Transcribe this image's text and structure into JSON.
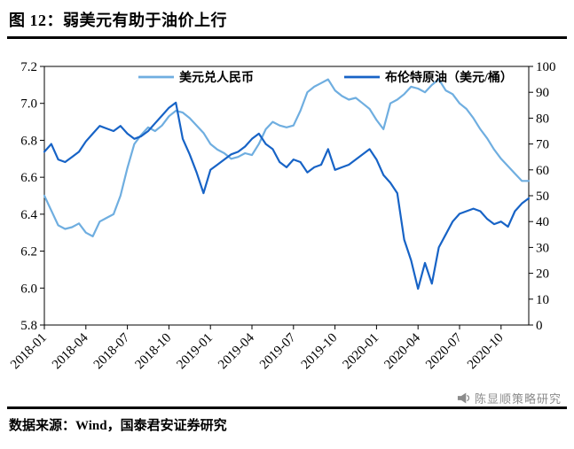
{
  "header": {
    "title": "图 12：弱美元有助于油价上行"
  },
  "footer": {
    "source": "数据来源：Wind，国泰君安证券研究",
    "watermark": "陈显顺策略研究"
  },
  "icons": {
    "watermark": "megaphone-icon"
  },
  "colors": {
    "usdcny_line": "#6FAEE0",
    "brent_line": "#1763C6",
    "divider": "#000000",
    "watermark_text": "#8C8C8C"
  },
  "chart_data": {
    "type": "line",
    "title": "图 12：弱美元有助于油价上行",
    "legend_position": "top",
    "grid": false,
    "x_range": [
      0,
      35
    ],
    "x_ticks": [
      0,
      3,
      6,
      9,
      12,
      15,
      18,
      21,
      24,
      27,
      30,
      33
    ],
    "x_tick_labels": [
      "2018-01",
      "2018-04",
      "2018-07",
      "2018-10",
      "2019-01",
      "2019-04",
      "2019-07",
      "2019-10",
      "2020-01",
      "2020-04",
      "2020-07",
      "2020-10"
    ],
    "left_axis": {
      "label": "美元兑人民币",
      "min": 5.8,
      "max": 7.2,
      "ticks": [
        5.8,
        6.0,
        6.2,
        6.4,
        6.6,
        6.8,
        7.0,
        7.2
      ],
      "tick_labels": [
        "5.8",
        "6.0",
        "6.2",
        "6.4",
        "6.6",
        "6.8",
        "7.0",
        "7.2"
      ]
    },
    "right_axis": {
      "label": "布伦特原油（美元/桶）",
      "min": 0,
      "max": 100,
      "ticks": [
        0,
        10,
        20,
        30,
        40,
        50,
        60,
        70,
        80,
        90,
        100
      ],
      "tick_labels": [
        "0",
        "10",
        "20",
        "30",
        "40",
        "50",
        "60",
        "70",
        "80",
        "90",
        "100"
      ]
    },
    "x": [
      0,
      0.5,
      1,
      1.5,
      2,
      2.5,
      3,
      3.5,
      4,
      4.5,
      5,
      5.5,
      6,
      6.5,
      7,
      7.5,
      8,
      8.5,
      9,
      9.5,
      10,
      10.5,
      11,
      11.5,
      12,
      12.5,
      13,
      13.5,
      14,
      14.5,
      15,
      15.5,
      16,
      16.5,
      17,
      17.5,
      18,
      18.5,
      19,
      19.5,
      20,
      20.5,
      21,
      21.5,
      22,
      22.5,
      23,
      23.5,
      24,
      24.5,
      25,
      25.5,
      26,
      26.5,
      27,
      27.5,
      28,
      28.5,
      29,
      29.5,
      30,
      30.5,
      31,
      31.5,
      32,
      32.5,
      33,
      33.5,
      34,
      34.5,
      35
    ],
    "series": [
      {
        "name": "美元兑人民币",
        "axis": "left",
        "color": "#6FAEE0",
        "values": [
          6.5,
          6.42,
          6.34,
          6.32,
          6.33,
          6.35,
          6.3,
          6.28,
          6.36,
          6.38,
          6.4,
          6.5,
          6.65,
          6.78,
          6.83,
          6.87,
          6.85,
          6.88,
          6.93,
          6.96,
          6.95,
          6.92,
          6.88,
          6.84,
          6.78,
          6.75,
          6.73,
          6.7,
          6.71,
          6.73,
          6.72,
          6.78,
          6.86,
          6.9,
          6.88,
          6.87,
          6.88,
          6.96,
          7.06,
          7.09,
          7.11,
          7.13,
          7.07,
          7.04,
          7.02,
          7.03,
          7.0,
          6.97,
          6.91,
          6.86,
          7.0,
          7.02,
          7.05,
          7.09,
          7.08,
          7.06,
          7.1,
          7.13,
          7.07,
          7.05,
          7.0,
          6.97,
          6.92,
          6.86,
          6.81,
          6.75,
          6.7,
          6.66,
          6.62,
          6.58,
          6.58
        ]
      },
      {
        "name": "布伦特原油（美元/桶）",
        "axis": "right",
        "color": "#1763C6",
        "values": [
          67,
          70,
          64,
          63,
          65,
          67,
          71,
          74,
          77,
          76,
          75,
          77,
          74,
          72,
          73,
          75,
          78,
          81,
          84,
          86,
          72,
          66,
          59,
          51,
          60,
          62,
          64,
          66,
          67,
          69,
          72,
          74,
          70,
          68,
          63,
          61,
          64,
          63,
          59,
          61,
          62,
          68,
          60,
          61,
          62,
          64,
          66,
          68,
          64,
          58,
          55,
          51,
          33,
          25,
          14,
          24,
          16,
          30,
          35,
          40,
          43,
          44,
          45,
          44,
          41,
          39,
          40,
          38,
          44,
          47,
          49
        ]
      }
    ]
  }
}
